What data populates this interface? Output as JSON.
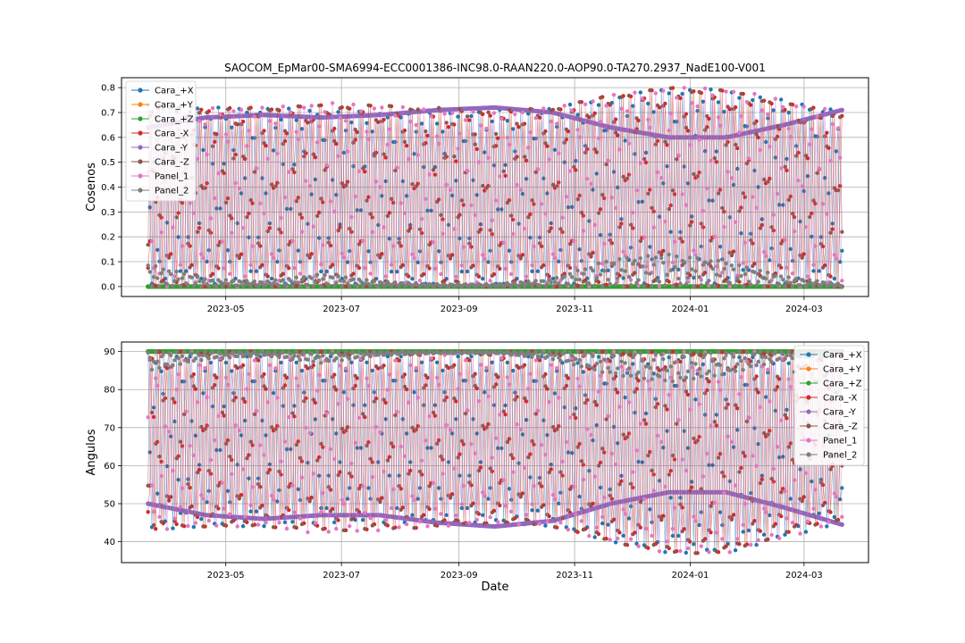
{
  "chart_data": [
    {
      "type": "line",
      "title": "SAOCOM_EpMar00-SMA6994-ECC0001386-INC98.0-RAAN220.0-AOP90.0-TA270.2937_NadE100-V001",
      "xlabel": "",
      "ylabel": "Cosenos",
      "x_range": [
        "2023-03-21",
        "2024-03-21"
      ],
      "xlim": [
        "2023-03-07",
        "2024-04-04"
      ],
      "ylim": [
        -0.04,
        0.84
      ],
      "xticks": [
        "2023-05",
        "2023-07",
        "2023-09",
        "2023-11",
        "2024-01",
        "2024-03"
      ],
      "yticks": [
        "0.0",
        "0.1",
        "0.2",
        "0.3",
        "0.4",
        "0.5",
        "0.6",
        "0.7",
        "0.8"
      ],
      "grid": true,
      "legend_position": "top-left",
      "series": [
        {
          "name": "Cara_+X",
          "color": "#1f77b4",
          "upper": [
            0.73,
            0.72,
            0.72,
            0.71,
            0.7,
            0.7,
            0.71,
            0.72,
            0.76,
            0.8,
            0.79,
            0.75,
            0.71
          ],
          "lower": [
            0.0,
            0.0,
            0.0,
            0.0,
            0.0,
            0.0,
            0.0,
            0.0,
            0.0,
            0.0,
            0.0,
            0.0,
            0.0
          ]
        },
        {
          "name": "Cara_+Y",
          "color": "#ff7f0e",
          "upper": [
            0.0,
            0.0,
            0.0,
            0.0,
            0.0,
            0.0,
            0.0,
            0.0,
            0.0,
            0.0,
            0.0,
            0.0,
            0.0
          ],
          "lower": [
            0.0,
            0.0,
            0.0,
            0.0,
            0.0,
            0.0,
            0.0,
            0.0,
            0.0,
            0.0,
            0.0,
            0.0,
            0.0
          ]
        },
        {
          "name": "Cara_+Z",
          "color": "#2ca02c",
          "upper": [
            0.0,
            0.0,
            0.0,
            0.0,
            0.0,
            0.0,
            0.0,
            0.0,
            0.0,
            0.0,
            0.0,
            0.0,
            0.0
          ],
          "lower": [
            0.0,
            0.0,
            0.0,
            0.0,
            0.0,
            0.0,
            0.0,
            0.0,
            0.0,
            0.0,
            0.0,
            0.0,
            0.0
          ]
        },
        {
          "name": "Cara_-X",
          "color": "#d62728",
          "upper": [
            0.73,
            0.72,
            0.72,
            0.73,
            0.73,
            0.71,
            0.7,
            0.72,
            0.77,
            0.8,
            0.79,
            0.74,
            0.7
          ],
          "lower": [
            0.0,
            0.0,
            0.0,
            0.0,
            0.0,
            0.0,
            0.0,
            0.0,
            0.0,
            0.0,
            0.0,
            0.0,
            0.0
          ]
        },
        {
          "name": "Cara_-Y",
          "color": "#9467bd",
          "upper": [
            0.64,
            0.68,
            0.69,
            0.68,
            0.69,
            0.71,
            0.72,
            0.7,
            0.64,
            0.6,
            0.6,
            0.65,
            0.71
          ],
          "lower": [
            0.64,
            0.68,
            0.69,
            0.68,
            0.69,
            0.71,
            0.72,
            0.7,
            0.64,
            0.6,
            0.6,
            0.65,
            0.71
          ]
        },
        {
          "name": "Cara_-Z",
          "color": "#8c564b",
          "upper": [
            0.72,
            0.71,
            0.72,
            0.73,
            0.73,
            0.72,
            0.71,
            0.72,
            0.77,
            0.8,
            0.79,
            0.74,
            0.69
          ],
          "lower": [
            0.0,
            0.0,
            0.0,
            0.0,
            0.0,
            0.0,
            0.0,
            0.0,
            0.0,
            0.0,
            0.0,
            0.0,
            0.0
          ]
        },
        {
          "name": "Panel_1",
          "color": "#e377c2",
          "upper": [
            0.73,
            0.72,
            0.72,
            0.74,
            0.73,
            0.71,
            0.7,
            0.72,
            0.77,
            0.8,
            0.8,
            0.75,
            0.7
          ],
          "lower": [
            0.0,
            0.0,
            0.0,
            0.0,
            0.0,
            0.0,
            0.0,
            0.0,
            0.0,
            0.0,
            0.0,
            0.0,
            0.0
          ]
        },
        {
          "name": "Panel_2",
          "color": "#7f7f7f",
          "upper": [
            0.09,
            0.03,
            0.02,
            0.05,
            0.02,
            0.01,
            0.01,
            0.03,
            0.11,
            0.13,
            0.1,
            0.04,
            0.01
          ],
          "lower": [
            0.0,
            0.0,
            0.0,
            0.0,
            0.0,
            0.0,
            0.0,
            0.0,
            0.0,
            0.0,
            0.0,
            0.0,
            0.0
          ]
        }
      ]
    },
    {
      "type": "line",
      "title": "",
      "xlabel": "Date",
      "ylabel": "Angulos",
      "x_range": [
        "2023-03-21",
        "2024-03-21"
      ],
      "xlim": [
        "2023-03-07",
        "2024-04-04"
      ],
      "ylim": [
        34.5,
        92.5
      ],
      "xticks": [
        "2023-05",
        "2023-07",
        "2023-09",
        "2023-11",
        "2024-01",
        "2024-03"
      ],
      "yticks": [
        "40",
        "50",
        "60",
        "70",
        "80",
        "90"
      ],
      "grid": true,
      "legend_position": "top-right",
      "series": [
        {
          "name": "Cara_+X",
          "color": "#1f77b4",
          "upper": [
            90,
            90,
            90,
            90,
            90,
            90,
            90,
            90,
            90,
            90,
            90,
            90,
            90
          ],
          "lower": [
            43,
            44,
            44,
            45,
            45,
            45,
            45,
            44,
            40,
            37,
            37,
            41,
            45
          ]
        },
        {
          "name": "Cara_+Y",
          "color": "#ff7f0e",
          "upper": [
            90,
            90,
            90,
            90,
            90,
            90,
            90,
            90,
            90,
            90,
            90,
            90,
            90
          ],
          "lower": [
            90,
            90,
            90,
            90,
            90,
            90,
            90,
            90,
            90,
            90,
            90,
            90,
            90
          ]
        },
        {
          "name": "Cara_+Z",
          "color": "#2ca02c",
          "upper": [
            90,
            90,
            90,
            90,
            90,
            90,
            90,
            90,
            90,
            90,
            90,
            90,
            90
          ],
          "lower": [
            90,
            90,
            90,
            90,
            90,
            90,
            90,
            90,
            90,
            90,
            90,
            90,
            90
          ]
        },
        {
          "name": "Cara_-X",
          "color": "#d62728",
          "upper": [
            90,
            90,
            90,
            90,
            90,
            90,
            90,
            90,
            90,
            90,
            90,
            90,
            90
          ],
          "lower": [
            43,
            44,
            44,
            43,
            43,
            44,
            45,
            44,
            40,
            37,
            37,
            42,
            46
          ]
        },
        {
          "name": "Cara_-Y",
          "color": "#9467bd",
          "upper": [
            50,
            47,
            46,
            47,
            47,
            45,
            44,
            45.5,
            50,
            53,
            53,
            49,
            44.5
          ],
          "lower": [
            50,
            47,
            46,
            47,
            47,
            45,
            44,
            45.5,
            50,
            53,
            53,
            49,
            44.5
          ]
        },
        {
          "name": "Cara_-Z",
          "color": "#8c564b",
          "upper": [
            90,
            90,
            90,
            90,
            90,
            90,
            90,
            90,
            90,
            90,
            90,
            90,
            90
          ],
          "lower": [
            44,
            44,
            44,
            43,
            43,
            44,
            45,
            44,
            40,
            37,
            37,
            42,
            46
          ]
        },
        {
          "name": "Panel_1",
          "color": "#e377c2",
          "upper": [
            90,
            90,
            90,
            90,
            90,
            90,
            90,
            90,
            90,
            90,
            90,
            90,
            90
          ],
          "lower": [
            43,
            44,
            44,
            42,
            43,
            44,
            45,
            44,
            40,
            37,
            37,
            41,
            45
          ]
        },
        {
          "name": "Panel_2",
          "color": "#7f7f7f",
          "upper": [
            90,
            90,
            90,
            90,
            90,
            90,
            90,
            90,
            90,
            90,
            90,
            90,
            90
          ],
          "lower": [
            85,
            88,
            89,
            87,
            89,
            89.5,
            89.5,
            88,
            84,
            82,
            84,
            88,
            89.5
          ]
        }
      ]
    }
  ]
}
